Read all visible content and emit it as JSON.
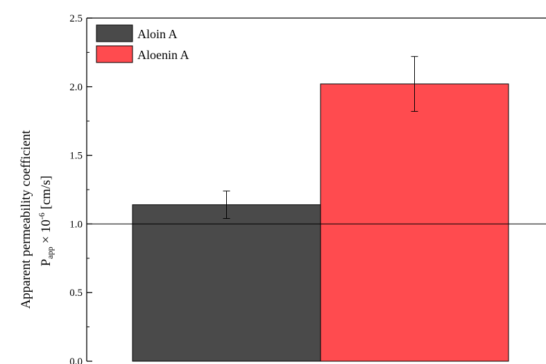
{
  "chart_data": {
    "type": "bar",
    "title": "",
    "xlabel": "",
    "ylabel_line1": "Apparent permeability coefficient",
    "ylabel_line2_main": "P",
    "ylabel_line2_sub": "app",
    "ylabel_line2_mid": " × 10",
    "ylabel_line2_sup": "-6",
    "ylabel_line2_end": " [cm/s]",
    "ylim": [
      0,
      2.5
    ],
    "yticks": [
      "0.0",
      "0.5",
      "1.0",
      "1.5",
      "2.0",
      "2.5"
    ],
    "reference_line": 1.0,
    "grid": false,
    "legend_position": "top-left",
    "series": [
      {
        "name": "Aloin A",
        "value": 1.14,
        "error": 0.1,
        "color": "#4a4a4a"
      },
      {
        "name": "Aloenin A",
        "value": 2.02,
        "error": 0.2,
        "color": "#ff4b4f"
      }
    ]
  }
}
